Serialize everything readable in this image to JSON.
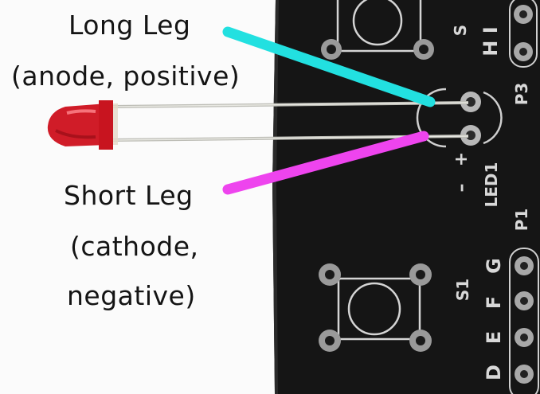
{
  "labels": {
    "long_leg_title": "Long Leg",
    "long_leg_detail": "(anode, positive)",
    "short_leg_title": "Short Leg",
    "short_leg_detail_1": "(cathode,",
    "short_leg_detail_2": "negative)"
  },
  "silkscreen": {
    "s_top": "S",
    "h_i": "H I",
    "p3": "P3",
    "plus": "+",
    "minus": "–",
    "led1": "LED1",
    "p1": "P1",
    "s1": "S1",
    "g": "G",
    "f1": "F",
    "e": "E",
    "d": "D"
  },
  "colors": {
    "anode_pointer": "#22e0e0",
    "cathode_pointer": "#ee44ee",
    "board": "#131313",
    "led_body": "#d01c28"
  }
}
